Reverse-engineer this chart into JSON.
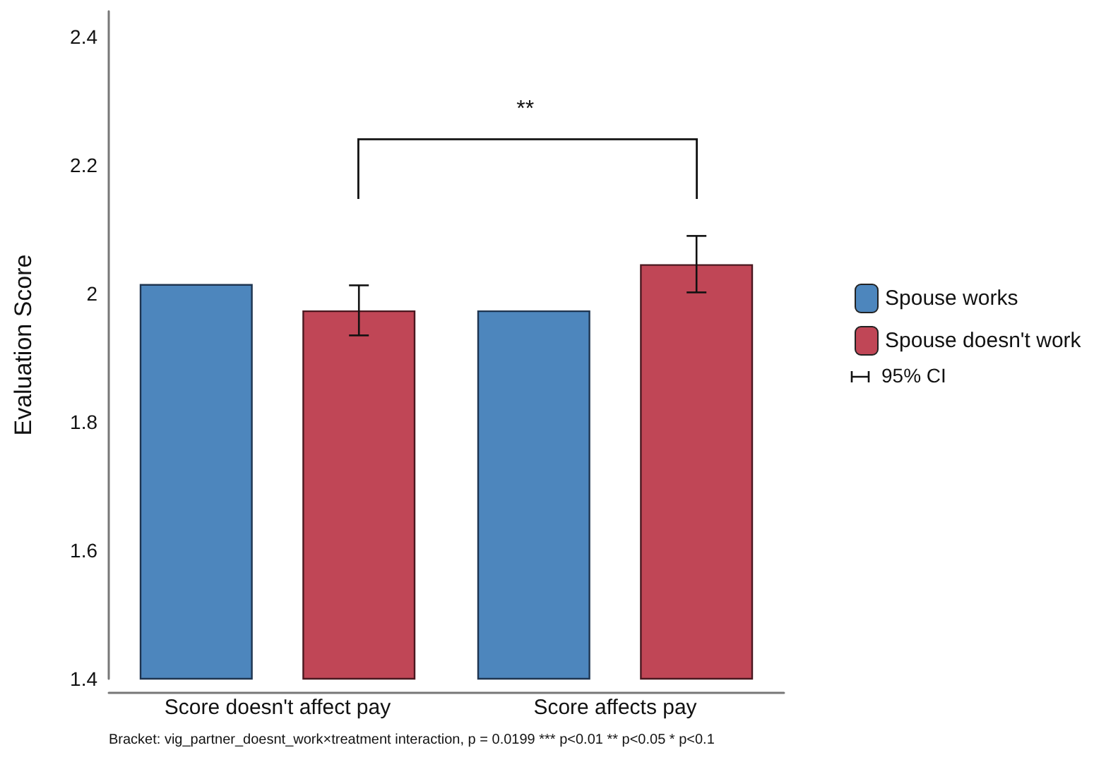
{
  "chart_data": {
    "type": "bar",
    "ylabel": "Evaluation Score",
    "categories": [
      "Score doesn't affect pay",
      "Score affects pay"
    ],
    "series": [
      {
        "name": "Spouse works",
        "color": "#4d86bd",
        "values": [
          2.015,
          1.974
        ]
      },
      {
        "name": "Spouse doesn't work",
        "color": "#c04656",
        "values": [
          1.974,
          2.046
        ],
        "errors": [
          0.039,
          0.044
        ]
      }
    ],
    "ylim": [
      1.4,
      2.44
    ],
    "yticks": [
      1.4,
      1.6,
      1.8,
      2,
      2.2,
      2.4
    ],
    "grid": false,
    "legend": "right",
    "annotations": [
      "**",
      "95% CI",
      "Bracket: vig_partner_doesnt_work×treatment interaction, p = 0.0199   *** p<0.01  ** p<0.05  * p<0.1"
    ]
  }
}
